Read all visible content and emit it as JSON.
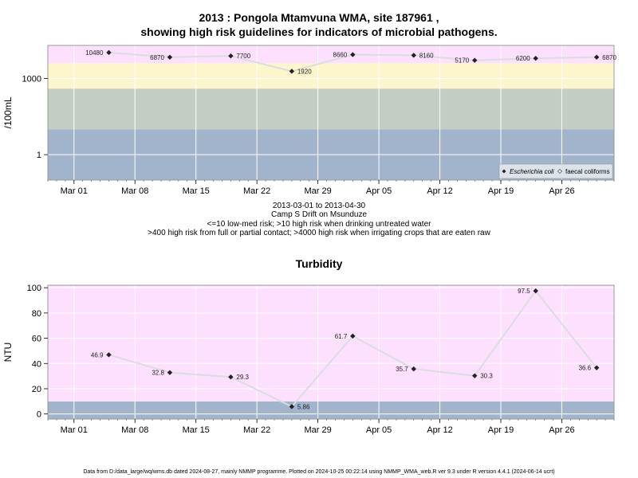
{
  "header": {
    "title_line1": "2013 : Pongola Mtamvuna WMA, site 187961 ,",
    "title_line2": "showing high risk guidelines for indicators of microbial pathogens."
  },
  "notes": {
    "date_range": "2013-03-01 to 2013-04-30",
    "location": "Camp S Drift on Msunduze",
    "risk_line1": "<=10 low-med risk; >10 high risk when drinking untreated water",
    "risk_line2": ">400 high risk from full or partial contact; >4000 high risk when irrigating crops that are eaten raw"
  },
  "footer": {
    "text": "Data from D:/data_large/wq/wms.db dated 2024-08-27, mainly NMMP programme. Plotted on 2024-10-25 00:22:14 using NMMP_WMA_web.R ver 9.3 under R version 4.4.1 (2024-06-14 ucrt)"
  },
  "colors": {
    "band_pink": "#fde0fd",
    "band_yellow": "#fdf6cc",
    "band_grey": "#c4cdc4",
    "band_blue": "#a2b3cc",
    "line": "#d9dde0",
    "point": "#222222",
    "grid": "#ffffff"
  },
  "chart_data": [
    {
      "type": "line",
      "title": "",
      "ylabel": "/100mL",
      "yscale": "log",
      "ylim": [
        0.1,
        20000
      ],
      "y_ticks": [
        1,
        1000
      ],
      "x_ticks": [
        "Mar 01",
        "Mar 08",
        "Mar 15",
        "Mar 22",
        "Mar 29",
        "Apr 05",
        "Apr 12",
        "Apr 19",
        "Apr 26"
      ],
      "x_tick_dates": [
        "2013-03-01",
        "2013-03-08",
        "2013-03-15",
        "2013-03-22",
        "2013-03-29",
        "2013-04-05",
        "2013-04-12",
        "2013-04-19",
        "2013-04-26"
      ],
      "xlim": [
        "2013-02-26",
        "2013-05-02"
      ],
      "bands": [
        {
          "from": 0.1,
          "to": 10,
          "color": "#a2b3cc"
        },
        {
          "from": 10,
          "to": 400,
          "color": "#c4cdc4"
        },
        {
          "from": 400,
          "to": 4000,
          "color": "#fdf6cc"
        },
        {
          "from": 4000,
          "to": 20000,
          "color": "#fde0fd"
        }
      ],
      "legend": {
        "position": "bottom-right",
        "entries": [
          "Escherichia coli",
          "faecal coliforms"
        ]
      },
      "series": [
        {
          "name": "Escherichia coli",
          "x": [
            "2013-03-05",
            "2013-03-12",
            "2013-03-19",
            "2013-03-26",
            "2013-04-02",
            "2013-04-09",
            "2013-04-16",
            "2013-04-23",
            "2013-04-30"
          ],
          "values": [
            10480,
            6870,
            7700,
            1920,
            8660,
            8160,
            5170,
            6200,
            6870
          ],
          "labels": [
            "10480",
            "6870",
            "7700",
            "1920",
            "8660",
            "8160",
            "5170",
            "6200",
            "6870"
          ]
        }
      ]
    },
    {
      "type": "line",
      "title": "Turbidity",
      "ylabel": "NTU",
      "ylim": [
        -4,
        102
      ],
      "y_ticks": [
        0,
        20,
        40,
        60,
        80,
        100
      ],
      "x_ticks": [
        "Mar 01",
        "Mar 08",
        "Mar 15",
        "Mar 22",
        "Mar 29",
        "Apr 05",
        "Apr 12",
        "Apr 19",
        "Apr 26"
      ],
      "x_tick_dates": [
        "2013-03-01",
        "2013-03-08",
        "2013-03-15",
        "2013-03-22",
        "2013-03-29",
        "2013-04-05",
        "2013-04-12",
        "2013-04-19",
        "2013-04-26"
      ],
      "xlim": [
        "2013-02-26",
        "2013-05-02"
      ],
      "bands": [
        {
          "from": -4,
          "to": 10,
          "color": "#a2b3cc"
        },
        {
          "from": 10,
          "to": 102,
          "color": "#fde0fd"
        }
      ],
      "series": [
        {
          "name": "",
          "x": [
            "2013-03-05",
            "2013-03-12",
            "2013-03-19",
            "2013-03-26",
            "2013-04-02",
            "2013-04-09",
            "2013-04-16",
            "2013-04-23",
            "2013-04-30"
          ],
          "values": [
            46.9,
            32.8,
            29.3,
            5.86,
            61.7,
            35.7,
            30.3,
            97.5,
            36.6
          ],
          "labels": [
            "46.9",
            "32.8",
            "29.3",
            "5.86",
            "61.7",
            "35.7",
            "30.3",
            "97.5",
            "36.6"
          ]
        }
      ]
    }
  ]
}
